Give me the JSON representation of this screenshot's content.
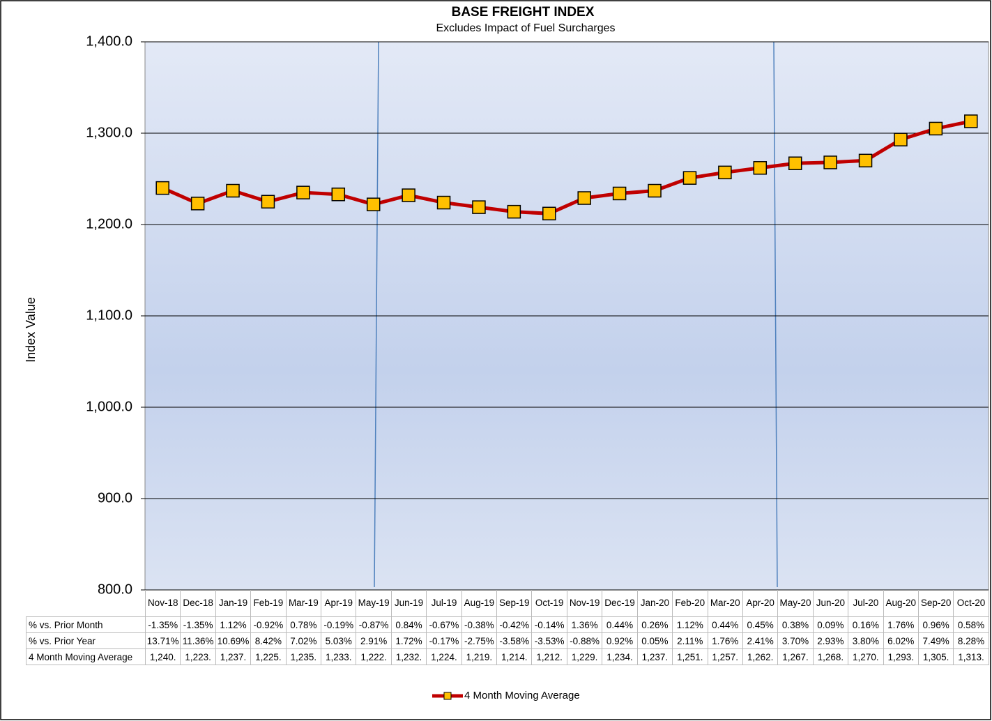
{
  "chart_data": {
    "type": "line",
    "title": "BASE FREIGHT INDEX",
    "subtitle": "Excludes Impact of Fuel Surcharges",
    "y_label": "Index Value",
    "categories": [
      "Nov-18",
      "Dec-18",
      "Jan-19",
      "Feb-19",
      "Mar-19",
      "Apr-19",
      "May-19",
      "Jun-19",
      "Jul-19",
      "Aug-19",
      "Sep-19",
      "Oct-19",
      "Nov-19",
      "Dec-19",
      "Jan-20",
      "Feb-20",
      "Mar-20",
      "Apr-20",
      "May-20",
      "Jun-20",
      "Jul-20",
      "Aug-20",
      "Sep-20",
      "Oct-20"
    ],
    "series": [
      {
        "name": "4 Month Moving Average",
        "color": "#c00000",
        "marker_color": "#ffc000",
        "values": [
          1240,
          1223,
          1237,
          1225,
          1235,
          1233,
          1222,
          1232,
          1224,
          1219,
          1214,
          1212,
          1229,
          1234,
          1237,
          1251,
          1257,
          1262,
          1267,
          1268,
          1270,
          1293,
          1305,
          1313
        ]
      }
    ],
    "ylim": [
      800,
      1400
    ],
    "yticks": [
      {
        "value": 800,
        "label": "800.0"
      },
      {
        "value": 900,
        "label": "900.0"
      },
      {
        "value": 1000,
        "label": "1,000.0"
      },
      {
        "value": 1100,
        "label": "1,100.0"
      },
      {
        "value": 1200,
        "label": "1,200.0"
      },
      {
        "value": 1300,
        "label": "1,300.0"
      },
      {
        "value": 1400,
        "label": "1,400.0"
      }
    ],
    "grid": true,
    "legend": "bottom",
    "data_table": {
      "rows": [
        {
          "label": "% vs. Prior Month",
          "values": [
            "-1.35%",
            "-1.35%",
            "1.12%",
            "-0.92%",
            "0.78%",
            "-0.19%",
            "-0.87%",
            "0.84%",
            "-0.67%",
            "-0.38%",
            "-0.42%",
            "-0.14%",
            "1.36%",
            "0.44%",
            "0.26%",
            "1.12%",
            "0.44%",
            "0.45%",
            "0.38%",
            "0.09%",
            "0.16%",
            "1.76%",
            "0.96%",
            "0.58%"
          ]
        },
        {
          "label": "% vs. Prior Year",
          "values": [
            "13.71%",
            "11.36%",
            "10.69%",
            "8.42%",
            "7.02%",
            "5.03%",
            "2.91%",
            "1.72%",
            "-0.17%",
            "-2.75%",
            "-3.58%",
            "-3.53%",
            "-0.88%",
            "0.92%",
            "0.05%",
            "2.11%",
            "1.76%",
            "2.41%",
            "3.70%",
            "2.93%",
            "3.80%",
            "6.02%",
            "7.49%",
            "8.28%"
          ]
        },
        {
          "label": "4 Month Moving Average",
          "values": [
            "1,240.",
            "1,223.",
            "1,237.",
            "1,225.",
            "1,235.",
            "1,233.",
            "1,222.",
            "1,232.",
            "1,224.",
            "1,219.",
            "1,214.",
            "1,212.",
            "1,229.",
            "1,234.",
            "1,237.",
            "1,251.",
            "1,257.",
            "1,262.",
            "1,267.",
            "1,268.",
            "1,270.",
            "1,293.",
            "1,305.",
            "1,313."
          ]
        }
      ]
    }
  }
}
